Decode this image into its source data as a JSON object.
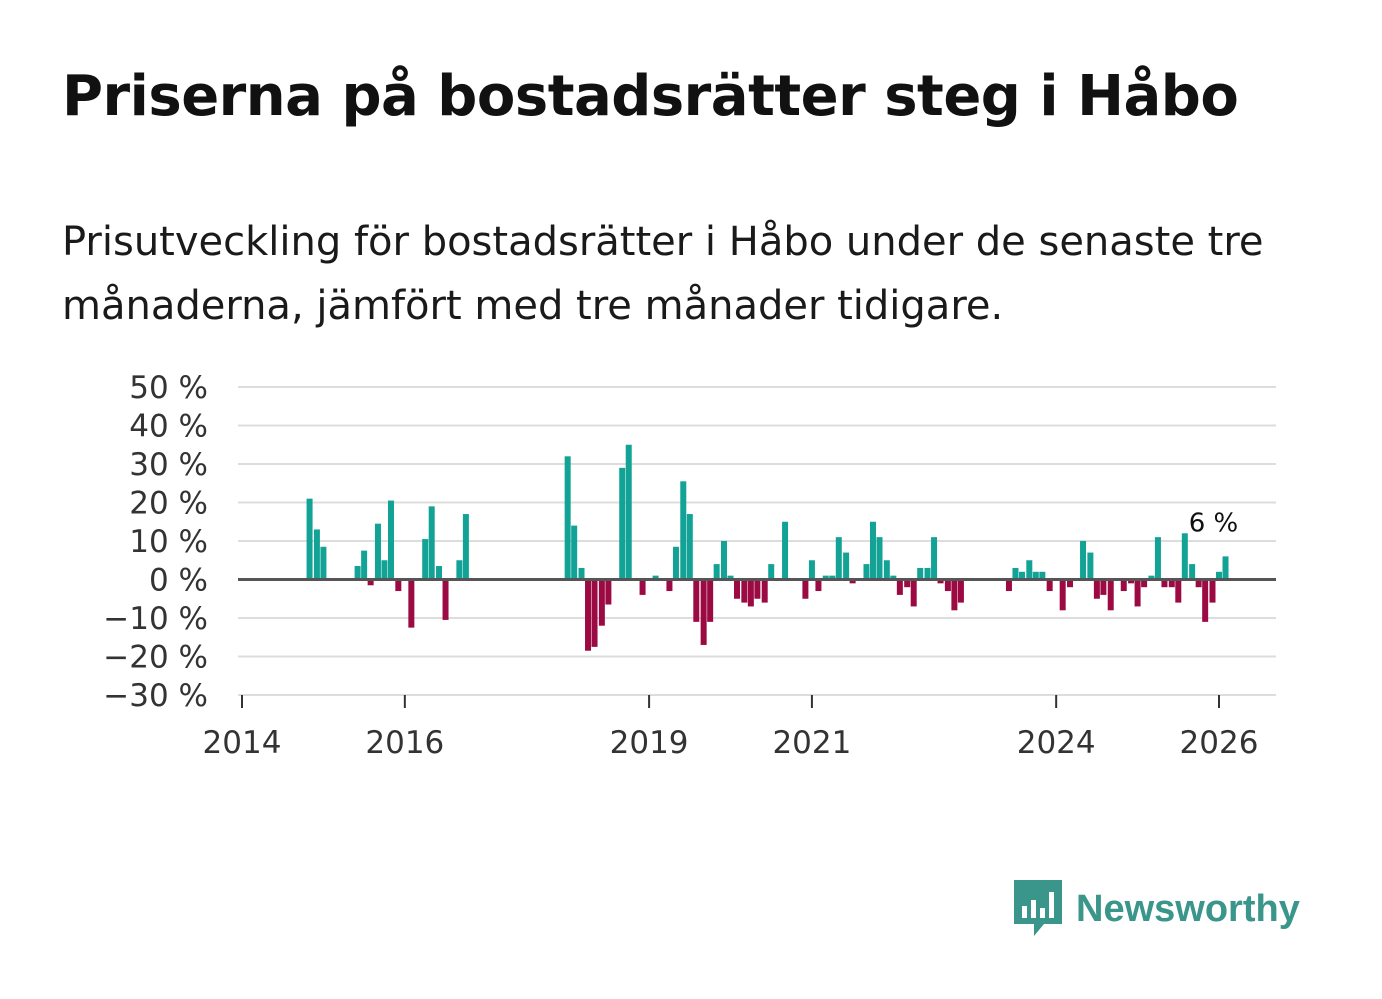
{
  "title": "Priserna på bostadsrätter steg i Håbo",
  "subtitle": "Prisutveckling för bostadsrätter i Håbo under de senaste tre månaderna, jämfört med tre månader tidigare.",
  "brand": {
    "name": "Newsworthy",
    "icon": "newsworthy-logo-icon",
    "color": "#3a958b"
  },
  "colors": {
    "positive": "#12a396",
    "negative": "#9c0a43",
    "grid": "#dddddd",
    "zero": "#555555"
  },
  "chart_data": {
    "type": "bar",
    "ylabel": "",
    "xlabel": "",
    "ylim": [
      -30,
      50
    ],
    "yticks": [
      50,
      40,
      30,
      20,
      10,
      0,
      -10,
      -20,
      -30
    ],
    "ytick_labels": [
      "50 %",
      "40 %",
      "30 %",
      "20 %",
      "10 %",
      "0 %",
      "−10 %",
      "−20 %",
      "−30 %"
    ],
    "xlim": [
      2014.0,
      2026.7
    ],
    "xticks": [
      {
        "value": 2014.0,
        "label": "2014"
      },
      {
        "value": 2016.0,
        "label": "2016"
      },
      {
        "value": 2019.0,
        "label": "2019"
      },
      {
        "value": 2021.0,
        "label": "2021"
      },
      {
        "value": 2024.0,
        "label": "2024"
      },
      {
        "value": 2026.0,
        "label": "2026"
      }
    ],
    "annotation": {
      "text": "6 %",
      "x": 2026.08
    },
    "series": [
      {
        "x": 2014.83,
        "value": 21
      },
      {
        "x": 2014.92,
        "value": 13
      },
      {
        "x": 2015.0,
        "value": 8.5
      },
      {
        "x": 2015.42,
        "value": 3.5
      },
      {
        "x": 2015.5,
        "value": 7.5
      },
      {
        "x": 2015.58,
        "value": -1.5
      },
      {
        "x": 2015.67,
        "value": 14.5
      },
      {
        "x": 2015.75,
        "value": 5
      },
      {
        "x": 2015.83,
        "value": 20.5
      },
      {
        "x": 2015.92,
        "value": -3
      },
      {
        "x": 2016.08,
        "value": -12.5
      },
      {
        "x": 2016.25,
        "value": 10.5
      },
      {
        "x": 2016.33,
        "value": 19
      },
      {
        "x": 2016.42,
        "value": 3.5
      },
      {
        "x": 2016.5,
        "value": -10.5
      },
      {
        "x": 2016.67,
        "value": 5
      },
      {
        "x": 2016.75,
        "value": 17
      },
      {
        "x": 2018.0,
        "value": 32
      },
      {
        "x": 2018.08,
        "value": 14
      },
      {
        "x": 2018.17,
        "value": 3
      },
      {
        "x": 2018.25,
        "value": -18.5
      },
      {
        "x": 2018.33,
        "value": -17.5
      },
      {
        "x": 2018.42,
        "value": -12
      },
      {
        "x": 2018.5,
        "value": -6.5
      },
      {
        "x": 2018.67,
        "value": 29
      },
      {
        "x": 2018.75,
        "value": 35
      },
      {
        "x": 2018.92,
        "value": -4
      },
      {
        "x": 2019.08,
        "value": 1
      },
      {
        "x": 2019.25,
        "value": -3
      },
      {
        "x": 2019.33,
        "value": 8.5
      },
      {
        "x": 2019.42,
        "value": 25.5
      },
      {
        "x": 2019.5,
        "value": 17
      },
      {
        "x": 2019.58,
        "value": -11
      },
      {
        "x": 2019.67,
        "value": -17
      },
      {
        "x": 2019.75,
        "value": -11
      },
      {
        "x": 2019.83,
        "value": 4
      },
      {
        "x": 2019.92,
        "value": 10
      },
      {
        "x": 2020.0,
        "value": 1
      },
      {
        "x": 2020.08,
        "value": -5
      },
      {
        "x": 2020.17,
        "value": -6
      },
      {
        "x": 2020.25,
        "value": -7
      },
      {
        "x": 2020.33,
        "value": -5
      },
      {
        "x": 2020.42,
        "value": -6
      },
      {
        "x": 2020.5,
        "value": 4
      },
      {
        "x": 2020.67,
        "value": 15
      },
      {
        "x": 2020.92,
        "value": -5
      },
      {
        "x": 2021.0,
        "value": 5
      },
      {
        "x": 2021.08,
        "value": -3
      },
      {
        "x": 2021.17,
        "value": 1
      },
      {
        "x": 2021.25,
        "value": 1
      },
      {
        "x": 2021.33,
        "value": 11
      },
      {
        "x": 2021.42,
        "value": 7
      },
      {
        "x": 2021.5,
        "value": -1
      },
      {
        "x": 2021.67,
        "value": 4
      },
      {
        "x": 2021.75,
        "value": 15
      },
      {
        "x": 2021.83,
        "value": 11
      },
      {
        "x": 2021.92,
        "value": 5
      },
      {
        "x": 2022.0,
        "value": 1
      },
      {
        "x": 2022.08,
        "value": -4
      },
      {
        "x": 2022.17,
        "value": -2
      },
      {
        "x": 2022.25,
        "value": -7
      },
      {
        "x": 2022.33,
        "value": 3
      },
      {
        "x": 2022.42,
        "value": 3
      },
      {
        "x": 2022.5,
        "value": 11
      },
      {
        "x": 2022.58,
        "value": -1
      },
      {
        "x": 2022.67,
        "value": -3
      },
      {
        "x": 2022.75,
        "value": -8
      },
      {
        "x": 2022.83,
        "value": -6
      },
      {
        "x": 2023.42,
        "value": -3
      },
      {
        "x": 2023.5,
        "value": 3
      },
      {
        "x": 2023.58,
        "value": 2
      },
      {
        "x": 2023.67,
        "value": 5
      },
      {
        "x": 2023.75,
        "value": 2
      },
      {
        "x": 2023.83,
        "value": 2
      },
      {
        "x": 2023.92,
        "value": -3
      },
      {
        "x": 2024.08,
        "value": -8
      },
      {
        "x": 2024.17,
        "value": -2
      },
      {
        "x": 2024.33,
        "value": 10
      },
      {
        "x": 2024.42,
        "value": 7
      },
      {
        "x": 2024.5,
        "value": -5
      },
      {
        "x": 2024.58,
        "value": -4
      },
      {
        "x": 2024.67,
        "value": -8
      },
      {
        "x": 2024.83,
        "value": -3
      },
      {
        "x": 2024.92,
        "value": -1
      },
      {
        "x": 2025.0,
        "value": -7
      },
      {
        "x": 2025.08,
        "value": -2
      },
      {
        "x": 2025.17,
        "value": 1
      },
      {
        "x": 2025.25,
        "value": 11
      },
      {
        "x": 2025.33,
        "value": -2
      },
      {
        "x": 2025.42,
        "value": -2
      },
      {
        "x": 2025.5,
        "value": -6
      },
      {
        "x": 2025.58,
        "value": 12
      },
      {
        "x": 2025.67,
        "value": 4
      },
      {
        "x": 2025.75,
        "value": -2
      },
      {
        "x": 2025.83,
        "value": -11
      },
      {
        "x": 2025.92,
        "value": -6
      },
      {
        "x": 2026.0,
        "value": 2
      },
      {
        "x": 2026.08,
        "value": 6
      }
    ]
  }
}
